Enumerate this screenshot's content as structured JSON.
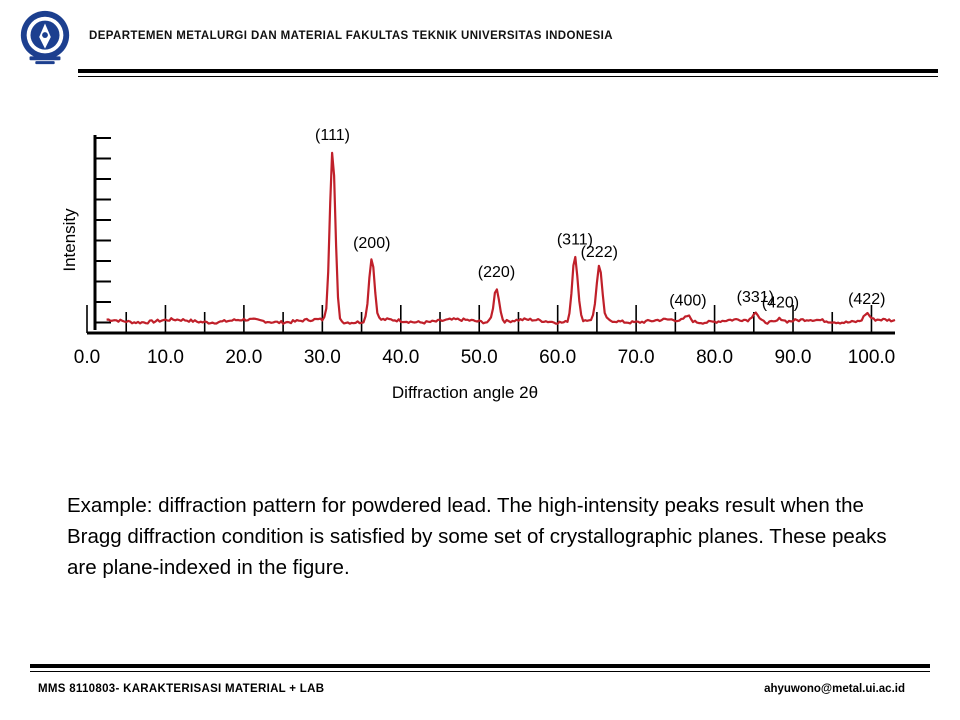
{
  "header": {
    "department": "DEPARTEMEN METALURGI DAN MATERIAL FAKULTAS TEKNIK UNIVERSITAS INDONESIA"
  },
  "caption": "Example: diffraction pattern for powdered lead. The high-intensity peaks result when the Bragg diffraction condition is satisfied by some set of crystallographic planes. These peaks are plane-indexed in the figure.",
  "footer": {
    "course": "MMS 8110803- KARAKTERISASI MATERIAL + LAB",
    "email": "ahyuwono@metal.ui.ac.id"
  },
  "colors": {
    "trace": "#c0202a",
    "axis": "#000000"
  },
  "chart_data": {
    "type": "line",
    "xlabel": "Diffraction angle 2θ",
    "ylabel": "Intensity",
    "xlim": [
      0,
      103
    ],
    "ylim": [
      0,
      100
    ],
    "x_tick_labels": [
      "0.0",
      "10.0",
      "20.0",
      "30.0",
      "40.0",
      "50.0",
      "60.0",
      "70.0",
      "80.0",
      "90.0",
      "100.0"
    ],
    "x_ticks": [
      0,
      10,
      20,
      30,
      40,
      50,
      60,
      70,
      80,
      90,
      100
    ],
    "baseline": 5,
    "peaks": [
      {
        "x": 31.3,
        "y": 100,
        "label": "(111)"
      },
      {
        "x": 36.3,
        "y": 40,
        "label": "(200)"
      },
      {
        "x": 52.2,
        "y": 24,
        "label": "(220)"
      },
      {
        "x": 62.2,
        "y": 42,
        "label": "(311)"
      },
      {
        "x": 65.3,
        "y": 35,
        "label": "(222)"
      },
      {
        "x": 76.6,
        "y": 8,
        "label": "(400)"
      },
      {
        "x": 85.2,
        "y": 10,
        "label": "(331)"
      },
      {
        "x": 88.4,
        "y": 7,
        "label": "(420)"
      },
      {
        "x": 99.4,
        "y": 9,
        "label": "(422)"
      }
    ]
  }
}
